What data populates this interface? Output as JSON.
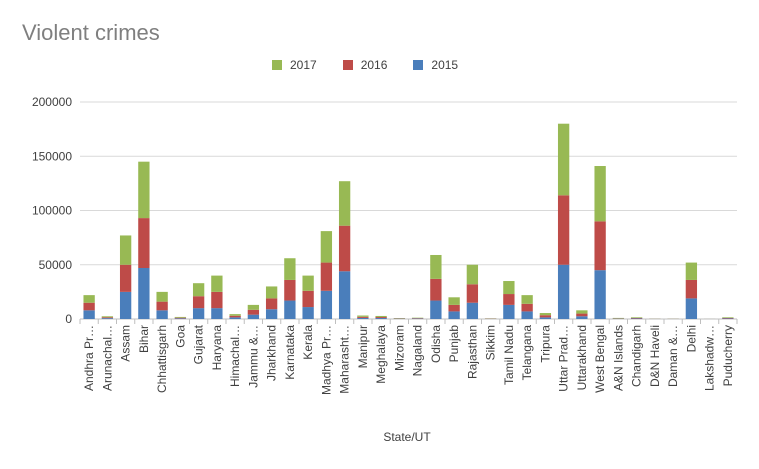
{
  "chart_data": {
    "type": "bar",
    "stacked": true,
    "title": "Violent crimes",
    "xlabel": "State/UT",
    "ylabel": "",
    "ylim": [
      0,
      200000
    ],
    "yticks": [
      "0",
      "50000",
      "100000",
      "150000",
      "200000"
    ],
    "grid": true,
    "legend_position": "top",
    "legend_order": [
      "2017",
      "2016",
      "2015"
    ],
    "categories": [
      "Andhra Pr…",
      "Arunachal…",
      "Assam",
      "Bihar",
      "Chhattisgarh",
      "Goa",
      "Gujarat",
      "Haryana",
      "Himachal…",
      "Jammu &…",
      "Jharkhand",
      "Karnataka",
      "Kerala",
      "Madhya Pr…",
      "Maharasht…",
      "Manipur",
      "Meghalaya",
      "Mizoram",
      "Nagaland",
      "Odisha",
      "Punjab",
      "Rajasthan",
      "Sikkim",
      "Tamil Nadu",
      "Telangana",
      "Tripura",
      "Uttar Prad…",
      "Uttarakhand",
      "West Bengal",
      "A&N Islands",
      "Chandigarh",
      "D&N Haveli",
      "Daman &…",
      "Delhi",
      "Lakshadw…",
      "Puducherry"
    ],
    "series": [
      {
        "name": "2015",
        "color": "#4a7ebb",
        "values": [
          8000,
          800,
          25000,
          47000,
          8000,
          600,
          10000,
          10000,
          1500,
          4000,
          9000,
          17000,
          11000,
          26000,
          44000,
          1000,
          900,
          300,
          400,
          17000,
          7000,
          15000,
          200,
          13000,
          7000,
          1500,
          50000,
          2500,
          45000,
          300,
          500,
          100,
          100,
          19000,
          30,
          500
        ]
      },
      {
        "name": "2016",
        "color": "#be4b48",
        "values": [
          7000,
          800,
          25000,
          46000,
          8000,
          600,
          11000,
          15000,
          1500,
          4500,
          10000,
          19000,
          15000,
          26000,
          42000,
          1000,
          900,
          300,
          400,
          20000,
          6000,
          17000,
          200,
          10000,
          7000,
          2000,
          64000,
          2500,
          45000,
          300,
          500,
          100,
          100,
          17000,
          30,
          500
        ]
      },
      {
        "name": "2017",
        "color": "#98b954",
        "values": [
          7000,
          900,
          27000,
          52000,
          9000,
          700,
          12000,
          15000,
          1500,
          4500,
          11000,
          20000,
          14000,
          29000,
          41000,
          1200,
          1000,
          300,
          400,
          22000,
          7000,
          18000,
          200,
          12000,
          8000,
          2000,
          66000,
          3000,
          51000,
          400,
          600,
          100,
          100,
          16000,
          30,
          600
        ]
      }
    ]
  }
}
